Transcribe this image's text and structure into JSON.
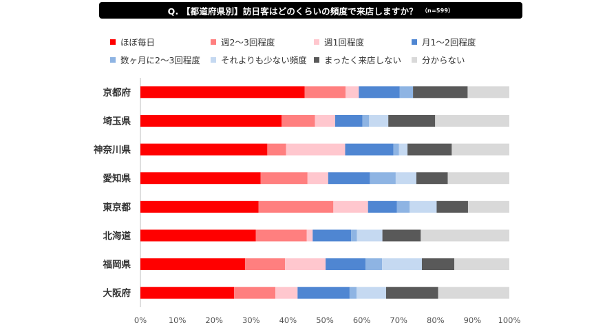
{
  "header": {
    "title": "Q. 【都道府県別】訪日客はどのくらいの頻度で来店しますか？",
    "note": "（n=599）"
  },
  "chart_data": {
    "type": "bar",
    "orientation": "horizontal",
    "stacked": true,
    "categories": [
      "京都府",
      "埼玉県",
      "神奈川県",
      "愛知県",
      "東京都",
      "北海道",
      "福岡県",
      "大阪府"
    ],
    "series": [
      {
        "name": "ほぼ毎日",
        "color": "#FF0000",
        "values": [
          44.5,
          38.3,
          34.4,
          32.6,
          32.0,
          31.3,
          28.4,
          25.4
        ]
      },
      {
        "name": "週2～3回程度",
        "color": "#FF7F7F",
        "values": [
          11.1,
          9.0,
          5.1,
          12.7,
          20.3,
          13.8,
          10.8,
          11.2
        ]
      },
      {
        "name": "週1回程度",
        "color": "#FFC7CE",
        "values": [
          3.6,
          5.5,
          16.0,
          5.6,
          9.4,
          1.6,
          11.0,
          6.0
        ]
      },
      {
        "name": "月1～2回程度",
        "color": "#4F86D2",
        "values": [
          11.1,
          7.4,
          13.1,
          11.3,
          7.8,
          10.4,
          10.8,
          14.1
        ]
      },
      {
        "name": "数ヶ月に2～3回程度",
        "color": "#8EB4E3",
        "values": [
          3.6,
          1.8,
          1.5,
          7.0,
          3.5,
          1.6,
          4.5,
          1.9
        ]
      },
      {
        "name": "それよりも少ない頻度",
        "color": "#C5D9F1",
        "values": [
          0.0,
          5.2,
          2.3,
          5.6,
          7.3,
          6.9,
          10.8,
          8.0
        ]
      },
      {
        "name": "まったく来店しない",
        "color": "#595959",
        "values": [
          14.8,
          12.7,
          12.0,
          8.5,
          8.5,
          10.4,
          8.8,
          14.1
        ]
      },
      {
        "name": "分からない",
        "color": "#D9D9D9",
        "values": [
          11.3,
          20.1,
          15.6,
          16.7,
          11.2,
          24.0,
          14.9,
          19.3
        ]
      }
    ],
    "xlim": [
      0,
      100
    ],
    "xticks": [
      "0%",
      "10%",
      "20%",
      "30%",
      "40%",
      "50%",
      "60%",
      "70%",
      "80%",
      "90%",
      "100%"
    ],
    "grid": false,
    "legend_position": "top"
  }
}
